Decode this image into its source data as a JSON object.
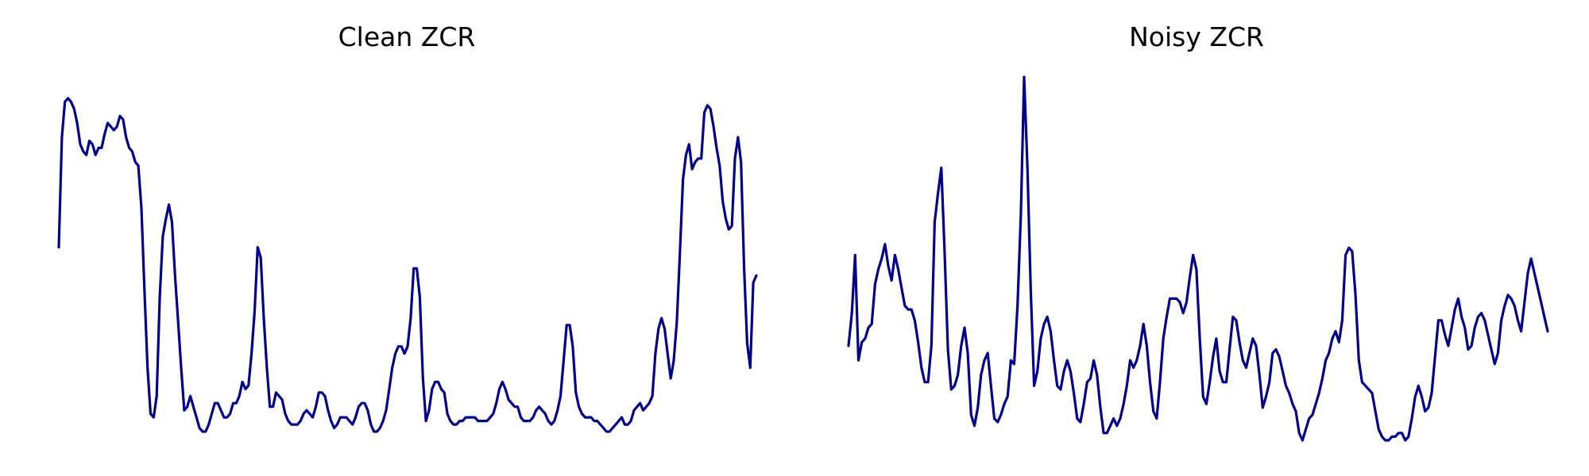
{
  "line_color": "#00008b",
  "chart_data": [
    {
      "type": "line",
      "title": "Clean ZCR",
      "axes_visible": false,
      "grid": false,
      "ylim": [
        0,
        1
      ],
      "values": [
        0.52,
        0.83,
        0.93,
        0.94,
        0.93,
        0.91,
        0.87,
        0.81,
        0.79,
        0.78,
        0.82,
        0.81,
        0.78,
        0.8,
        0.8,
        0.84,
        0.87,
        0.86,
        0.85,
        0.86,
        0.89,
        0.88,
        0.83,
        0.8,
        0.79,
        0.76,
        0.75,
        0.63,
        0.4,
        0.18,
        0.05,
        0.04,
        0.1,
        0.38,
        0.55,
        0.6,
        0.64,
        0.59,
        0.44,
        0.31,
        0.18,
        0.06,
        0.07,
        0.1,
        0.07,
        0.04,
        0.01,
        0.0,
        0.0,
        0.02,
        0.05,
        0.08,
        0.08,
        0.06,
        0.04,
        0.04,
        0.05,
        0.08,
        0.08,
        0.1,
        0.14,
        0.12,
        0.13,
        0.22,
        0.34,
        0.52,
        0.49,
        0.32,
        0.18,
        0.07,
        0.07,
        0.11,
        0.1,
        0.09,
        0.05,
        0.03,
        0.02,
        0.02,
        0.02,
        0.03,
        0.05,
        0.06,
        0.05,
        0.04,
        0.07,
        0.11,
        0.11,
        0.1,
        0.06,
        0.03,
        0.01,
        0.02,
        0.04,
        0.04,
        0.04,
        0.03,
        0.02,
        0.04,
        0.07,
        0.08,
        0.08,
        0.06,
        0.02,
        0.0,
        0.0,
        0.01,
        0.03,
        0.06,
        0.12,
        0.18,
        0.22,
        0.24,
        0.24,
        0.22,
        0.24,
        0.32,
        0.46,
        0.46,
        0.38,
        0.15,
        0.03,
        0.06,
        0.12,
        0.14,
        0.14,
        0.12,
        0.11,
        0.05,
        0.03,
        0.02,
        0.02,
        0.03,
        0.03,
        0.04,
        0.04,
        0.04,
        0.04,
        0.03,
        0.03,
        0.03,
        0.03,
        0.04,
        0.05,
        0.08,
        0.12,
        0.14,
        0.12,
        0.09,
        0.08,
        0.07,
        0.07,
        0.04,
        0.03,
        0.03,
        0.03,
        0.04,
        0.06,
        0.07,
        0.06,
        0.05,
        0.03,
        0.02,
        0.03,
        0.06,
        0.1,
        0.2,
        0.3,
        0.3,
        0.24,
        0.11,
        0.07,
        0.05,
        0.04,
        0.04,
        0.04,
        0.03,
        0.03,
        0.02,
        0.01,
        0.0,
        0.0,
        0.01,
        0.02,
        0.03,
        0.04,
        0.02,
        0.02,
        0.03,
        0.06,
        0.07,
        0.08,
        0.06,
        0.07,
        0.08,
        0.1,
        0.22,
        0.29,
        0.32,
        0.29,
        0.22,
        0.15,
        0.2,
        0.31,
        0.5,
        0.71,
        0.78,
        0.81,
        0.74,
        0.76,
        0.77,
        0.77,
        0.9,
        0.92,
        0.91,
        0.86,
        0.8,
        0.75,
        0.65,
        0.6,
        0.57,
        0.58,
        0.77,
        0.83,
        0.76,
        0.46,
        0.25,
        0.18,
        0.42,
        0.44
      ],
      "series": []
    },
    {
      "type": "line",
      "title": "Noisy ZCR",
      "axes_visible": false,
      "grid": false,
      "ylim": [
        0,
        1
      ],
      "values": [
        0.26,
        0.35,
        0.51,
        0.22,
        0.27,
        0.28,
        0.31,
        0.32,
        0.43,
        0.47,
        0.5,
        0.54,
        0.48,
        0.44,
        0.51,
        0.47,
        0.42,
        0.37,
        0.36,
        0.36,
        0.33,
        0.27,
        0.2,
        0.16,
        0.16,
        0.26,
        0.6,
        0.68,
        0.75,
        0.52,
        0.25,
        0.14,
        0.15,
        0.18,
        0.26,
        0.31,
        0.24,
        0.07,
        0.04,
        0.09,
        0.18,
        0.22,
        0.24,
        0.15,
        0.06,
        0.05,
        0.07,
        0.1,
        0.12,
        0.22,
        0.21,
        0.37,
        0.62,
        1.0,
        0.75,
        0.41,
        0.15,
        0.19,
        0.28,
        0.32,
        0.34,
        0.3,
        0.22,
        0.15,
        0.14,
        0.19,
        0.22,
        0.19,
        0.13,
        0.06,
        0.05,
        0.1,
        0.16,
        0.17,
        0.22,
        0.18,
        0.09,
        0.02,
        0.02,
        0.04,
        0.06,
        0.04,
        0.06,
        0.1,
        0.15,
        0.22,
        0.2,
        0.22,
        0.26,
        0.32,
        0.26,
        0.16,
        0.08,
        0.06,
        0.16,
        0.28,
        0.34,
        0.39,
        0.39,
        0.39,
        0.38,
        0.35,
        0.38,
        0.45,
        0.51,
        0.47,
        0.28,
        0.12,
        0.1,
        0.16,
        0.23,
        0.28,
        0.19,
        0.16,
        0.16,
        0.25,
        0.34,
        0.33,
        0.27,
        0.22,
        0.2,
        0.24,
        0.28,
        0.26,
        0.18,
        0.09,
        0.12,
        0.16,
        0.24,
        0.25,
        0.23,
        0.19,
        0.15,
        0.13,
        0.1,
        0.08,
        0.02,
        0.0,
        0.03,
        0.06,
        0.07,
        0.1,
        0.13,
        0.17,
        0.22,
        0.24,
        0.28,
        0.3,
        0.27,
        0.33,
        0.51,
        0.53,
        0.52,
        0.4,
        0.22,
        0.16,
        0.15,
        0.14,
        0.13,
        0.08,
        0.03,
        0.01,
        0.0,
        0.0,
        0.01,
        0.01,
        0.02,
        0.02,
        0.0,
        0.01,
        0.06,
        0.12,
        0.15,
        0.12,
        0.08,
        0.09,
        0.13,
        0.23,
        0.33,
        0.33,
        0.29,
        0.26,
        0.31,
        0.36,
        0.39,
        0.34,
        0.31,
        0.25,
        0.26,
        0.31,
        0.34,
        0.35,
        0.33,
        0.29,
        0.25,
        0.21,
        0.24,
        0.33,
        0.37,
        0.4,
        0.39,
        0.37,
        0.33,
        0.3,
        0.38,
        0.46,
        0.5,
        0.46,
        0.42,
        0.38,
        0.34,
        0.3
      ],
      "series": []
    }
  ]
}
